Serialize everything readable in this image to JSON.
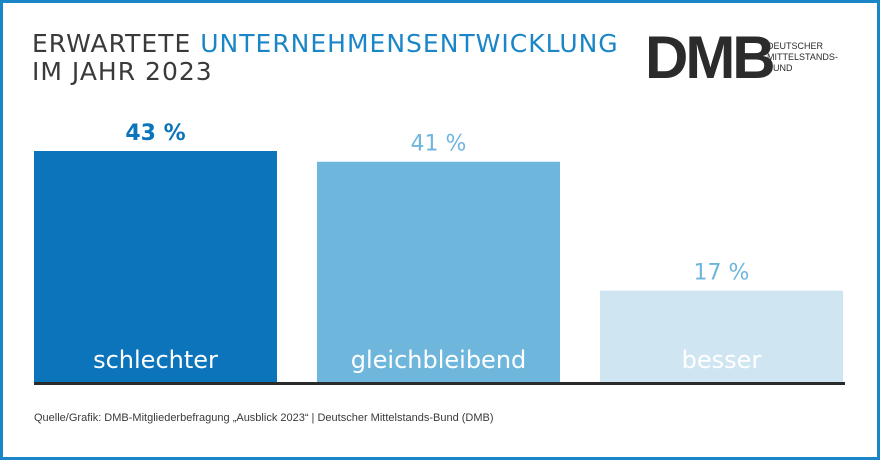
{
  "header": {
    "title_line1_part1": "ERWARTETE",
    "title_line1_part2": "UNTERNEHMENSENTWICKLUNG",
    "title_line2": "IM JAHR 2023"
  },
  "logo": {
    "mark": "DMB",
    "line1": "DEUTSCHER",
    "line2": "MITTELSTANDS-",
    "line3": "BUND"
  },
  "chart_data": {
    "type": "bar",
    "title": "ERWARTETE UNTERNEHMENSENTWICKLUNG IM JAHR 2023",
    "categories": [
      "schlechter",
      "gleichbleibend",
      "besser"
    ],
    "values": [
      43,
      41,
      17
    ],
    "value_labels": [
      "43 %",
      "41 %",
      "17 %"
    ],
    "colors": [
      "#0b74bb",
      "#6fb6dd",
      "#cfe5f2"
    ],
    "value_label_colors": [
      "#0b74bb",
      "#6fb6dd",
      "#6fb6dd"
    ],
    "ylim": [
      0,
      50
    ],
    "grid": false,
    "legend": "none"
  },
  "footer": {
    "source": "Quelle/Grafik: DMB-Mitgliederbefragung „Ausblick 2023“ | Deutscher Mittelstands-Bund (DMB)"
  },
  "colors": {
    "accent": "#1a86c8",
    "text": "#3a3a3a",
    "baseline": "#2b2b2b"
  }
}
